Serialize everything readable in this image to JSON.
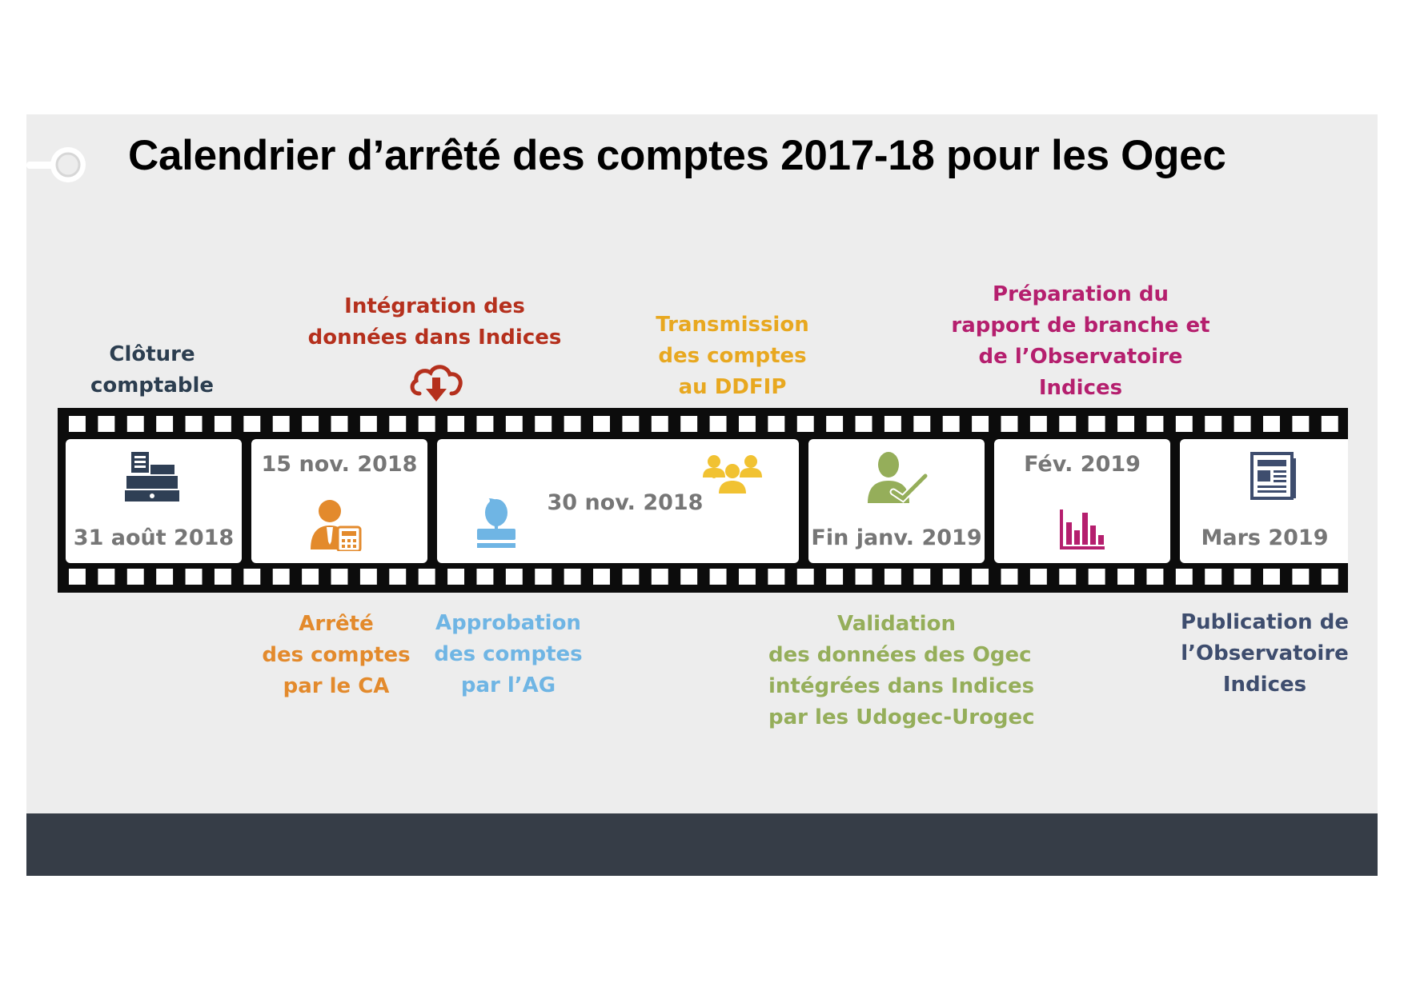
{
  "title": "Calendrier d’arrêté des comptes 2017-18 pour les Ogec",
  "frames": [
    {
      "date": "31 août 2018",
      "icon": "cash-register-icon"
    },
    {
      "date": "15 nov. 2018",
      "icon": "accountant-calculator-icon"
    },
    {
      "date": "30 nov. 2018",
      "icons": [
        "stamp-icon",
        "group-people-icon"
      ]
    },
    {
      "date": "Fin janv. 2019",
      "icon": "person-check-icon"
    },
    {
      "date": "Fév. 2019",
      "icon": "bar-chart-icon"
    },
    {
      "date": "Mars 2019",
      "icon": "newspaper-icon"
    }
  ],
  "top_labels": [
    {
      "lines": [
        "Clôture",
        "comptable"
      ],
      "color": "#2c3e50"
    },
    {
      "lines": [
        "Intégration des",
        "données dans Indices"
      ],
      "color": "#b5301d",
      "icon": "cloud-download-icon"
    },
    {
      "lines": [
        "Transmission",
        "des comptes",
        "au DDFIP"
      ],
      "color": "#e8a820"
    },
    {
      "lines": [
        "Préparation du",
        "rapport de branche et",
        "de l’Observatoire",
        "Indices"
      ],
      "color": "#b51f6e"
    }
  ],
  "bottom_labels": [
    {
      "lines": [
        "Arrêté",
        "des comptes",
        "par le CA"
      ],
      "color": "#e38a2c"
    },
    {
      "lines": [
        "Approbation",
        "des comptes",
        "par l’AG"
      ],
      "color": "#6fb5e4"
    },
    {
      "lines": [
        "Validation",
        "des données des Ogec",
        "intégrées dans Indices",
        "par les Udogec-Urogec"
      ],
      "color": "#95ae5a"
    },
    {
      "lines": [
        "Publication de",
        "l’Observatoire",
        "Indices"
      ],
      "color": "#3e4d6e"
    }
  ]
}
